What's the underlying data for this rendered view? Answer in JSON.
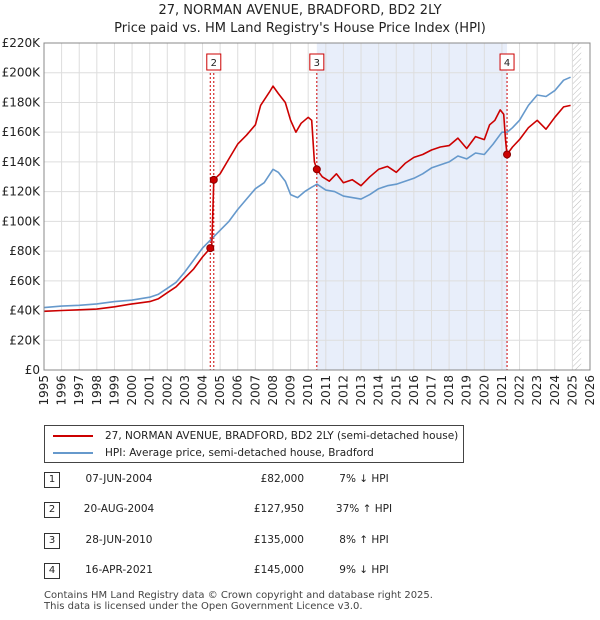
{
  "header": {
    "title": "27, NORMAN AVENUE, BRADFORD, BD2 2LY",
    "subtitle": "Price paid vs. HM Land Registry's House Price Index (HPI)"
  },
  "chart_data": {
    "type": "line",
    "title": "27, NORMAN AVENUE, BRADFORD, BD2 2LY",
    "subtitle": "Price paid vs. HM Land Registry's House Price Index (HPI)",
    "xlim": [
      1995,
      2026
    ],
    "ylim": [
      0,
      220000
    ],
    "x_ticks": [
      "1995",
      "1996",
      "1997",
      "1998",
      "1999",
      "2000",
      "2001",
      "2002",
      "2003",
      "2004",
      "2005",
      "2006",
      "2007",
      "2008",
      "2009",
      "2010",
      "2011",
      "2012",
      "2013",
      "2014",
      "2015",
      "2016",
      "2017",
      "2018",
      "2019",
      "2020",
      "2021",
      "2022",
      "2023",
      "2024",
      "2025",
      "2026"
    ],
    "y_ticks": [
      {
        "value": 0,
        "label": "£0"
      },
      {
        "value": 20000,
        "label": "£20K"
      },
      {
        "value": 40000,
        "label": "£40K"
      },
      {
        "value": 60000,
        "label": "£60K"
      },
      {
        "value": 80000,
        "label": "£80K"
      },
      {
        "value": 100000,
        "label": "£100K"
      },
      {
        "value": 120000,
        "label": "£120K"
      },
      {
        "value": 140000,
        "label": "£140K"
      },
      {
        "value": 160000,
        "label": "£160K"
      },
      {
        "value": 180000,
        "label": "£180K"
      },
      {
        "value": 200000,
        "label": "£200K"
      },
      {
        "value": 220000,
        "label": "£220K"
      }
    ],
    "grid": true,
    "shaded_period": [
      2010.49,
      2021.29
    ],
    "forecast_hatch_from": 2025.0,
    "series": [
      {
        "name": "27, NORMAN AVENUE, BRADFORD, BD2 2LY (semi-detached house)",
        "color": "#cc0000",
        "points": [
          [
            1995.0,
            39500
          ],
          [
            1996.0,
            40000
          ],
          [
            1997.0,
            40500
          ],
          [
            1998.0,
            41000
          ],
          [
            1999.0,
            42500
          ],
          [
            2000.0,
            44500
          ],
          [
            2001.0,
            46000
          ],
          [
            2001.5,
            48000
          ],
          [
            2002.0,
            52000
          ],
          [
            2002.5,
            56000
          ],
          [
            2003.0,
            62000
          ],
          [
            2003.5,
            68000
          ],
          [
            2004.0,
            76000
          ],
          [
            2004.44,
            82000
          ],
          [
            2004.52,
            82000
          ],
          [
            2004.64,
            127950
          ],
          [
            2005.0,
            132000
          ],
          [
            2005.5,
            142000
          ],
          [
            2006.0,
            152000
          ],
          [
            2006.5,
            158000
          ],
          [
            2007.0,
            165000
          ],
          [
            2007.3,
            178000
          ],
          [
            2007.8,
            187000
          ],
          [
            2008.0,
            191000
          ],
          [
            2008.3,
            186000
          ],
          [
            2008.7,
            180000
          ],
          [
            2009.0,
            168000
          ],
          [
            2009.3,
            160000
          ],
          [
            2009.6,
            166000
          ],
          [
            2010.0,
            170000
          ],
          [
            2010.2,
            168000
          ],
          [
            2010.35,
            140000
          ],
          [
            2010.49,
            135000
          ],
          [
            2010.8,
            130000
          ],
          [
            2011.2,
            127000
          ],
          [
            2011.6,
            132000
          ],
          [
            2012.0,
            126000
          ],
          [
            2012.5,
            128000
          ],
          [
            2013.0,
            124000
          ],
          [
            2013.5,
            130000
          ],
          [
            2014.0,
            135000
          ],
          [
            2014.5,
            137000
          ],
          [
            2015.0,
            133000
          ],
          [
            2015.5,
            139000
          ],
          [
            2016.0,
            143000
          ],
          [
            2016.5,
            145000
          ],
          [
            2017.0,
            148000
          ],
          [
            2017.5,
            150000
          ],
          [
            2018.0,
            151000
          ],
          [
            2018.5,
            156000
          ],
          [
            2019.0,
            149000
          ],
          [
            2019.5,
            157000
          ],
          [
            2020.0,
            155000
          ],
          [
            2020.3,
            165000
          ],
          [
            2020.6,
            168000
          ],
          [
            2020.9,
            175000
          ],
          [
            2021.1,
            172000
          ],
          [
            2021.2,
            155000
          ],
          [
            2021.29,
            145000
          ],
          [
            2021.6,
            150000
          ],
          [
            2022.0,
            155000
          ],
          [
            2022.5,
            163000
          ],
          [
            2023.0,
            168000
          ],
          [
            2023.5,
            162000
          ],
          [
            2024.0,
            170000
          ],
          [
            2024.5,
            177000
          ],
          [
            2024.9,
            178000
          ]
        ]
      },
      {
        "name": "HPI: Average price, semi-detached house, Bradford",
        "color": "#6699cc",
        "points": [
          [
            1995.0,
            42000
          ],
          [
            1996.0,
            43000
          ],
          [
            1997.0,
            43500
          ],
          [
            1998.0,
            44500
          ],
          [
            1999.0,
            46000
          ],
          [
            2000.0,
            47000
          ],
          [
            2001.0,
            49000
          ],
          [
            2001.5,
            51000
          ],
          [
            2002.0,
            55000
          ],
          [
            2002.5,
            59000
          ],
          [
            2003.0,
            66000
          ],
          [
            2003.5,
            74000
          ],
          [
            2004.0,
            82000
          ],
          [
            2004.5,
            88000
          ],
          [
            2005.0,
            94000
          ],
          [
            2005.5,
            100000
          ],
          [
            2006.0,
            108000
          ],
          [
            2006.5,
            115000
          ],
          [
            2007.0,
            122000
          ],
          [
            2007.5,
            126000
          ],
          [
            2008.0,
            135000
          ],
          [
            2008.3,
            133000
          ],
          [
            2008.7,
            127000
          ],
          [
            2009.0,
            118000
          ],
          [
            2009.4,
            116000
          ],
          [
            2009.8,
            120000
          ],
          [
            2010.2,
            123000
          ],
          [
            2010.5,
            125000
          ],
          [
            2011.0,
            121000
          ],
          [
            2011.5,
            120000
          ],
          [
            2012.0,
            117000
          ],
          [
            2012.5,
            116000
          ],
          [
            2013.0,
            115000
          ],
          [
            2013.5,
            118000
          ],
          [
            2014.0,
            122000
          ],
          [
            2014.5,
            124000
          ],
          [
            2015.0,
            125000
          ],
          [
            2015.5,
            127000
          ],
          [
            2016.0,
            129000
          ],
          [
            2016.5,
            132000
          ],
          [
            2017.0,
            136000
          ],
          [
            2017.5,
            138000
          ],
          [
            2018.0,
            140000
          ],
          [
            2018.5,
            144000
          ],
          [
            2019.0,
            142000
          ],
          [
            2019.5,
            146000
          ],
          [
            2020.0,
            145000
          ],
          [
            2020.5,
            152000
          ],
          [
            2021.0,
            160000
          ],
          [
            2021.3,
            160000
          ],
          [
            2021.6,
            163000
          ],
          [
            2022.0,
            168000
          ],
          [
            2022.5,
            178000
          ],
          [
            2023.0,
            185000
          ],
          [
            2023.5,
            184000
          ],
          [
            2024.0,
            188000
          ],
          [
            2024.5,
            195000
          ],
          [
            2024.9,
            197000
          ]
        ]
      }
    ],
    "sales": [
      {
        "id": "1",
        "x": 2004.44,
        "y": 82000,
        "marker_top": false
      },
      {
        "id": "2",
        "x": 2004.64,
        "y": 127950,
        "marker_top": true
      },
      {
        "id": "3",
        "x": 2010.49,
        "y": 135000,
        "marker_top": true
      },
      {
        "id": "4",
        "x": 2021.29,
        "y": 145000,
        "marker_top": true
      }
    ]
  },
  "legend": {
    "items": [
      {
        "label": "27, NORMAN AVENUE, BRADFORD, BD2 2LY (semi-detached house)",
        "color": "#cc0000"
      },
      {
        "label": "HPI: Average price, semi-detached house, Bradford",
        "color": "#6699cc"
      }
    ]
  },
  "transactions": [
    {
      "num": "1",
      "date": "07-JUN-2004",
      "price": "£82,000",
      "hpi": "7% ↓ HPI"
    },
    {
      "num": "2",
      "date": "20-AUG-2004",
      "price": "£127,950",
      "hpi": "37% ↑ HPI"
    },
    {
      "num": "3",
      "date": "28-JUN-2010",
      "price": "£135,000",
      "hpi": "8% ↑ HPI"
    },
    {
      "num": "4",
      "date": "16-APR-2021",
      "price": "£145,000",
      "hpi": "9% ↓ HPI"
    }
  ],
  "footer": {
    "line1": "Contains HM Land Registry data © Crown copyright and database right 2025.",
    "line2": "This data is licensed under the Open Government Licence v3.0."
  }
}
